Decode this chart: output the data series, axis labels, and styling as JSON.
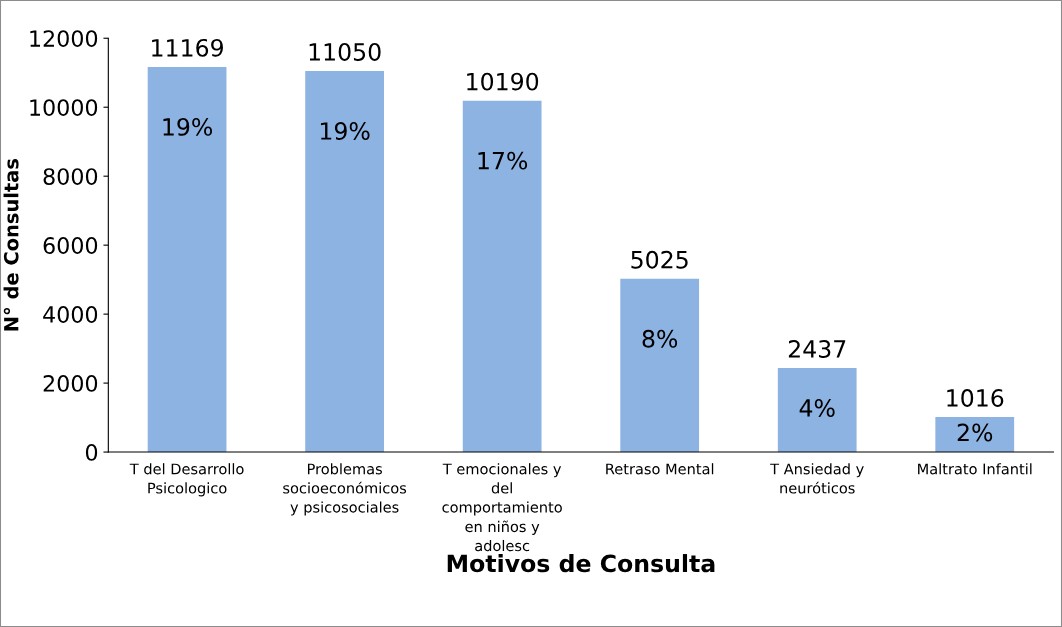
{
  "chart_data": {
    "type": "bar",
    "xlabel": "Motivos de Consulta",
    "ylabel": "N° de Consultas",
    "categories": [
      "T del Desarrollo\nPsicologico",
      "Problemas\nsocioeconómicos\ny psicosociales",
      "T emocionales y\ndel\ncomportamiento\nen niños y\nadolesc",
      "Retraso Mental",
      "T Ansiedad y\nneuróticos",
      "Maltrato Infantil"
    ],
    "values": [
      11169,
      11050,
      10190,
      5025,
      2437,
      1016
    ],
    "color": "#8db3e2",
    "ylim": [
      0,
      12000
    ],
    "yticks": [
      0,
      2000,
      4000,
      6000,
      8000,
      10000,
      12000
    ],
    "value_labels": [
      "11169",
      "11050",
      "10190",
      "5025",
      "2437",
      "1016"
    ],
    "annotations": [
      "19%",
      "19%",
      "17%",
      "8%",
      "4%",
      "2%"
    ],
    "grid": false,
    "legend": false
  }
}
